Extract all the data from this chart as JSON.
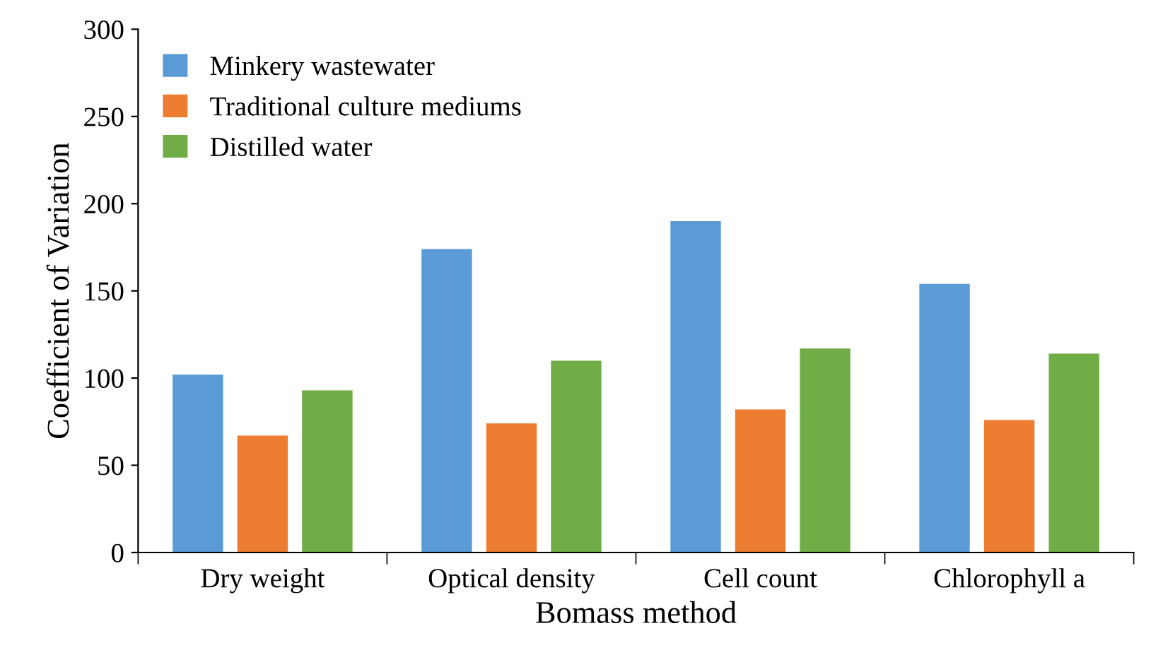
{
  "chart_data": {
    "type": "bar",
    "xlabel": "Bomass method",
    "ylabel": "Coefficient of Variation",
    "categories": [
      "Dry weight",
      "Optical density",
      "Cell count",
      "Chlorophyll a"
    ],
    "series": [
      {
        "name": "Minkery wastewater",
        "color": "#5b9bd5",
        "values": [
          102,
          174,
          190,
          154
        ]
      },
      {
        "name": "Traditional culture mediums",
        "color": "#ed7d31",
        "values": [
          67,
          74,
          82,
          76
        ]
      },
      {
        "name": "Distilled water",
        "color": "#70ad47",
        "values": [
          93,
          110,
          117,
          114
        ]
      }
    ],
    "ylim": [
      0,
      300
    ],
    "yticks": [
      0,
      50,
      100,
      150,
      200,
      250,
      300
    ],
    "grid": false,
    "legend": "top left"
  }
}
